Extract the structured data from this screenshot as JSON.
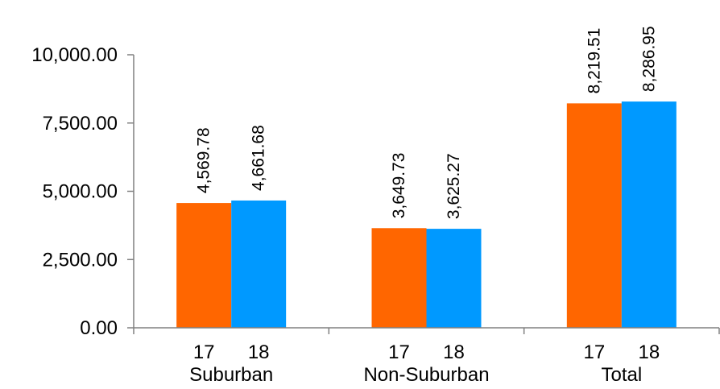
{
  "chart_data": {
    "type": "bar",
    "title": "",
    "xlabel": "",
    "ylabel": "",
    "ylim": [
      0,
      10000
    ],
    "yticks": [
      0,
      2500,
      5000,
      7500,
      10000
    ],
    "ytick_labels": [
      "0.00",
      "2,500.00",
      "5,000.00",
      "7,500.00",
      "10,000.00"
    ],
    "grid": false,
    "legend": "none",
    "categories": [
      "Suburban",
      "Non-Suburban",
      "Total"
    ],
    "series": [
      {
        "label": "17",
        "color": "#ff6600",
        "values": [
          4569.78,
          3649.73,
          8219.51
        ],
        "value_labels": [
          "4,569.78",
          "3,649.73",
          "8,219.51"
        ]
      },
      {
        "label": "18",
        "color": "#0099ff",
        "values": [
          4661.68,
          3625.27,
          8286.95
        ],
        "value_labels": [
          "4,661.68",
          "3,625.27",
          "8,286.95"
        ]
      }
    ]
  }
}
